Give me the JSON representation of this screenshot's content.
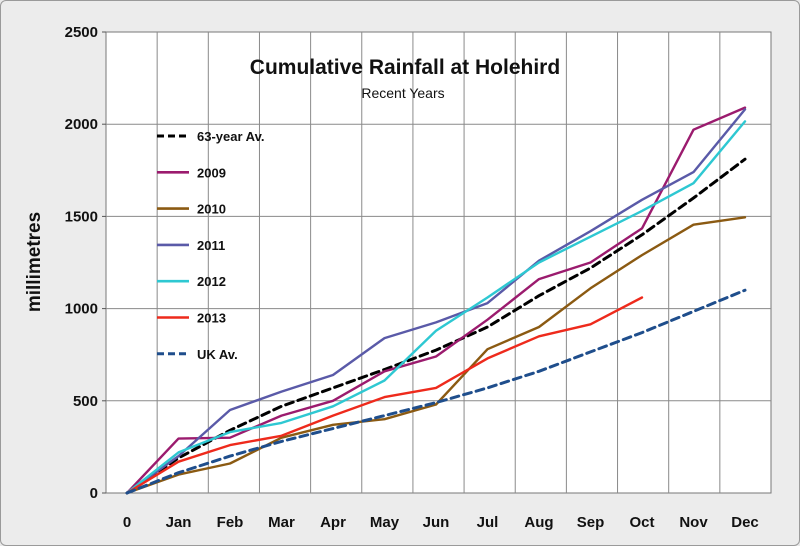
{
  "chart_data": {
    "type": "line",
    "title": "Cumulative Rainfall at Holehird",
    "subtitle": "Recent Years",
    "xlabel": "",
    "ylabel": "millimetres",
    "categories": [
      "0",
      "Jan",
      "Feb",
      "Mar",
      "Apr",
      "May",
      "Jun",
      "Jul",
      "Aug",
      "Sep",
      "Oct",
      "Nov",
      "Dec"
    ],
    "ylim": [
      0,
      2500
    ],
    "yticks": [
      0,
      500,
      1000,
      1500,
      2000,
      2500
    ],
    "grid": true,
    "legend_position": "left",
    "series": [
      {
        "name": "63-year Av.",
        "color": "#000000",
        "dash": true,
        "values": [
          0,
          190,
          340,
          470,
          570,
          670,
          775,
          900,
          1070,
          1220,
          1400,
          1600,
          1810
        ]
      },
      {
        "name": "2009",
        "color": "#9b1b6e",
        "dash": false,
        "values": [
          0,
          295,
          300,
          420,
          500,
          660,
          740,
          940,
          1160,
          1250,
          1435,
          1970,
          2090
        ]
      },
      {
        "name": "2010",
        "color": "#8b5a12",
        "dash": false,
        "values": [
          0,
          100,
          160,
          300,
          370,
          400,
          480,
          780,
          900,
          1110,
          1290,
          1455,
          1495
        ]
      },
      {
        "name": "2011",
        "color": "#5a5aa8",
        "dash": false,
        "values": [
          0,
          200,
          450,
          550,
          640,
          840,
          925,
          1030,
          1260,
          1420,
          1590,
          1740,
          2080
        ]
      },
      {
        "name": "2012",
        "color": "#2ec8d2",
        "dash": false,
        "values": [
          0,
          220,
          330,
          380,
          470,
          610,
          880,
          1060,
          1250,
          1390,
          1530,
          1680,
          2015
        ]
      },
      {
        "name": "2013",
        "color": "#ee2a1c",
        "dash": false,
        "values": [
          0,
          170,
          260,
          310,
          420,
          520,
          570,
          730,
          850,
          915,
          1060,
          null,
          null
        ]
      },
      {
        "name": "UK Av.",
        "color": "#1f4e8c",
        "dash": true,
        "values": [
          0,
          110,
          200,
          280,
          350,
          420,
          490,
          570,
          660,
          765,
          870,
          985,
          1100
        ]
      }
    ]
  }
}
